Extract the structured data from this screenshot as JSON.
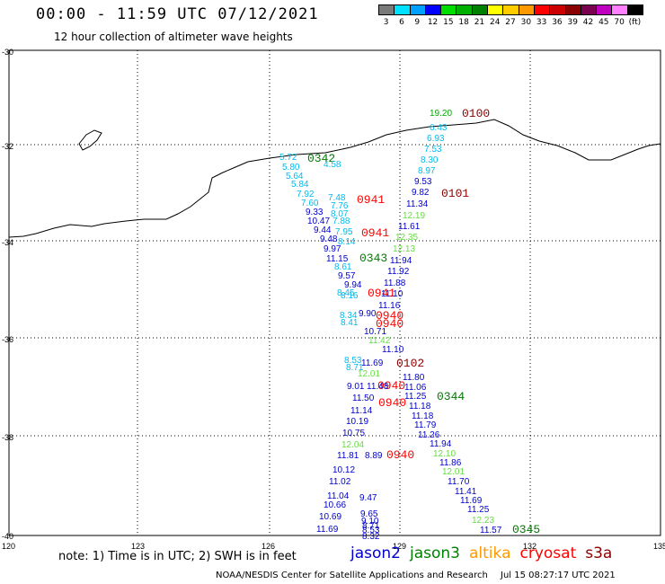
{
  "header": {
    "title": "00:00 - 11:59 UTC 07/12/2021",
    "subtitle": "12 hour collection of altimeter wave heights"
  },
  "colorbar": {
    "colors": [
      "#7a7a7a",
      "#00e0ff",
      "#00a0ff",
      "#0000ff",
      "#00dd00",
      "#00b000",
      "#008000",
      "#ffff00",
      "#ffcc00",
      "#ff9900",
      "#ff0000",
      "#cc0000",
      "#8b0000",
      "#7a0050",
      "#c000c0",
      "#ff80ff",
      "#000000"
    ],
    "labels": [
      "3",
      "6",
      "9",
      "12",
      "15",
      "18",
      "21",
      "24",
      "27",
      "30",
      "33",
      "36",
      "39",
      "42",
      "45",
      "70",
      "(ft)"
    ]
  },
  "axes": {
    "lat_labels": [
      "-30",
      "-32",
      "-34",
      "-36",
      "-38",
      "-40"
    ],
    "lon_labels": [
      "120",
      "123",
      "126",
      "129",
      "132",
      "135"
    ]
  },
  "time_labels": [
    {
      "text": "0100",
      "color": "#8b0000"
    },
    {
      "text": "0101",
      "color": "#8b0000"
    },
    {
      "text": "0342",
      "color": "#007a00"
    },
    {
      "text": "0941",
      "color": "#ff0000"
    },
    {
      "text": "0941",
      "color": "#ff0000"
    },
    {
      "text": "0343",
      "color": "#007a00"
    },
    {
      "text": "0941",
      "color": "#ff0000"
    },
    {
      "text": "0940",
      "color": "#ff0000"
    },
    {
      "text": "0940",
      "color": "#ff0000"
    },
    {
      "text": "0102",
      "color": "#8b0000"
    },
    {
      "text": "0940",
      "color": "#ff0000"
    },
    {
      "text": "0344",
      "color": "#007a00"
    },
    {
      "text": "0940",
      "color": "#ff0000"
    },
    {
      "text": "0940",
      "color": "#ff0000"
    },
    {
      "text": "0345",
      "color": "#007a00"
    }
  ],
  "wave_values": [
    {
      "v": "19.20",
      "c": "#00aa00"
    },
    {
      "v": "6.43",
      "c": "#00bbee"
    },
    {
      "v": "6.93",
      "c": "#00bbee"
    },
    {
      "v": "7.53",
      "c": "#00bbee"
    },
    {
      "v": "8.30",
      "c": "#00bbee"
    },
    {
      "v": "8.97",
      "c": "#00bbee"
    },
    {
      "v": "9.53",
      "c": "#0000cc"
    },
    {
      "v": "9.82",
      "c": "#0000cc"
    },
    {
      "v": "11.34",
      "c": "#0000cc"
    },
    {
      "v": "12.19",
      "c": "#66dd44"
    },
    {
      "v": "11.61",
      "c": "#0000cc"
    },
    {
      "v": "12.35",
      "c": "#66dd44"
    },
    {
      "v": "12.13",
      "c": "#66dd44"
    },
    {
      "v": "11.94",
      "c": "#0000cc"
    },
    {
      "v": "11.92",
      "c": "#0000cc"
    },
    {
      "v": "11.88",
      "c": "#0000cc"
    },
    {
      "v": "11.10",
      "c": "#0000cc"
    },
    {
      "v": "11.16",
      "c": "#0000cc"
    },
    {
      "v": "5.72",
      "c": "#00bbee"
    },
    {
      "v": "5.80",
      "c": "#00bbee"
    },
    {
      "v": "5.64",
      "c": "#00bbee"
    },
    {
      "v": "5.84",
      "c": "#00bbee"
    },
    {
      "v": "4.58",
      "c": "#00bbee"
    },
    {
      "v": "7.92",
      "c": "#00bbee"
    },
    {
      "v": "7.60",
      "c": "#00bbee"
    },
    {
      "v": "7.48",
      "c": "#00bbee"
    },
    {
      "v": "7.76",
      "c": "#00bbee"
    },
    {
      "v": "9.33",
      "c": "#0000cc"
    },
    {
      "v": "8.07",
      "c": "#00bbee"
    },
    {
      "v": "10.47",
      "c": "#0000cc"
    },
    {
      "v": "7.88",
      "c": "#00bbee"
    },
    {
      "v": "9.44",
      "c": "#0000cc"
    },
    {
      "v": "7.95",
      "c": "#00bbee"
    },
    {
      "v": "9.48",
      "c": "#0000cc"
    },
    {
      "v": "8.14",
      "c": "#00bbee"
    },
    {
      "v": "9.97",
      "c": "#0000cc"
    },
    {
      "v": "11.15",
      "c": "#0000cc"
    },
    {
      "v": "8.61",
      "c": "#00bbee"
    },
    {
      "v": "9.57",
      "c": "#0000cc"
    },
    {
      "v": "9.94",
      "c": "#0000cc"
    },
    {
      "v": "8.45",
      "c": "#00bbee"
    },
    {
      "v": "8.16",
      "c": "#00bbee"
    },
    {
      "v": "8.34",
      "c": "#00bbee"
    },
    {
      "v": "8.41",
      "c": "#00bbee"
    },
    {
      "v": "9.90",
      "c": "#0000cc"
    },
    {
      "v": "10.71",
      "c": "#0000cc"
    },
    {
      "v": "11.42",
      "c": "#66dd44"
    },
    {
      "v": "11.10",
      "c": "#0000cc"
    },
    {
      "v": "11.69",
      "c": "#0000cc"
    },
    {
      "v": "8.53",
      "c": "#00bbee"
    },
    {
      "v": "8.71",
      "c": "#00bbee"
    },
    {
      "v": "12.01",
      "c": "#66dd44"
    },
    {
      "v": "11.80",
      "c": "#0000cc"
    },
    {
      "v": "9.01",
      "c": "#0000cc"
    },
    {
      "v": "11.48",
      "c": "#0000cc"
    },
    {
      "v": "11.06",
      "c": "#0000cc"
    },
    {
      "v": "11.25",
      "c": "#0000cc"
    },
    {
      "v": "11.50",
      "c": "#0000cc"
    },
    {
      "v": "11.18",
      "c": "#0000cc"
    },
    {
      "v": "11.14",
      "c": "#0000cc"
    },
    {
      "v": "11.18",
      "c": "#0000cc"
    },
    {
      "v": "10.19",
      "c": "#0000cc"
    },
    {
      "v": "11.79",
      "c": "#0000cc"
    },
    {
      "v": "10.75",
      "c": "#0000cc"
    },
    {
      "v": "11.26",
      "c": "#0000cc"
    },
    {
      "v": "12.04",
      "c": "#66dd44"
    },
    {
      "v": "11.94",
      "c": "#0000cc"
    },
    {
      "v": "11.81",
      "c": "#0000cc"
    },
    {
      "v": "8.89",
      "c": "#0000cc"
    },
    {
      "v": "12.10",
      "c": "#66dd44"
    },
    {
      "v": "11.86",
      "c": "#0000cc"
    },
    {
      "v": "10.12",
      "c": "#0000cc"
    },
    {
      "v": "12.01",
      "c": "#66dd44"
    },
    {
      "v": "11.02",
      "c": "#0000cc"
    },
    {
      "v": "11.70",
      "c": "#0000cc"
    },
    {
      "v": "11.04",
      "c": "#0000cc"
    },
    {
      "v": "9.47",
      "c": "#0000cc"
    },
    {
      "v": "11.41",
      "c": "#0000cc"
    },
    {
      "v": "10.66",
      "c": "#0000cc"
    },
    {
      "v": "11.69",
      "c": "#0000cc"
    },
    {
      "v": "9.65",
      "c": "#0000cc"
    },
    {
      "v": "11.25",
      "c": "#0000cc"
    },
    {
      "v": "10.69",
      "c": "#0000cc"
    },
    {
      "v": "9.10",
      "c": "#0000cc"
    },
    {
      "v": "12.23",
      "c": "#66dd44"
    },
    {
      "v": "8.71",
      "c": "#0000cc"
    },
    {
      "v": "11.57",
      "c": "#0000cc"
    },
    {
      "v": "11.69",
      "c": "#0000cc"
    },
    {
      "v": "8.53",
      "c": "#0000cc"
    },
    {
      "v": "8.32",
      "c": "#0000cc"
    }
  ],
  "footer": {
    "note": "note: 1) Time is in UTC; 2) SWH is in feet",
    "satellites": [
      {
        "name": "jason2",
        "color": "#0000cc"
      },
      {
        "name": "jason3",
        "color": "#008000"
      },
      {
        "name": "altika",
        "color": "#ff9900"
      },
      {
        "name": "cryosat",
        "color": "#ff0000"
      },
      {
        "name": "s3a",
        "color": "#8b0000"
      }
    ],
    "credit": "NOAA/NESDIS Center for Satellite Applications and Research",
    "timestamp": "Jul 15 08:27:17 UTC 2021"
  }
}
